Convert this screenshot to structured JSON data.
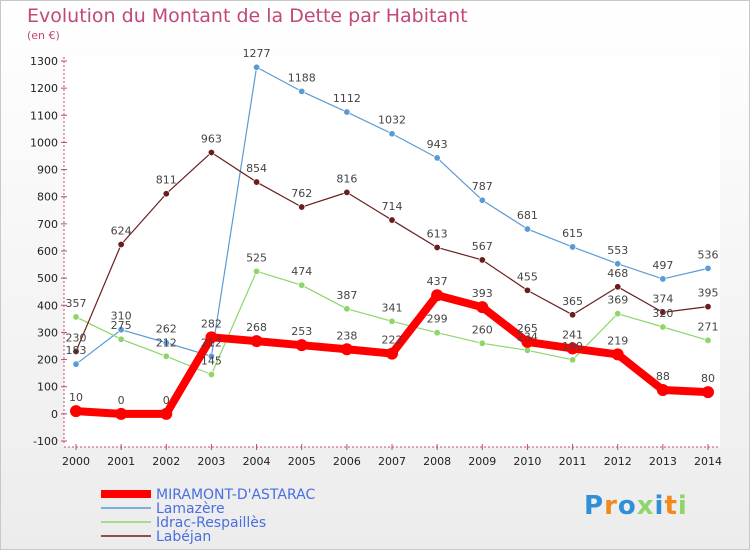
{
  "chart_data": {
    "type": "line",
    "title": "Evolution du Montant de la Dette par Habitant",
    "unit": "(en €)",
    "categories": [
      "2000",
      "2001",
      "2002",
      "2003",
      "2004",
      "2005",
      "2006",
      "2007",
      "2008",
      "2009",
      "2010",
      "2011",
      "2012",
      "2013",
      "2014"
    ],
    "ylim": [
      -100,
      1300
    ],
    "yticks": [
      -100,
      0,
      100,
      200,
      300,
      400,
      500,
      600,
      700,
      800,
      900,
      1000,
      1100,
      1200,
      1300
    ],
    "grid": false,
    "legend_position": "bottom-left",
    "series": [
      {
        "name": "MIRAMONT-D'ASTARAC",
        "color": "#ff0000",
        "values": [
          10,
          0,
          0,
          282,
          268,
          253,
          238,
          222,
          437,
          393,
          265,
          241,
          219,
          88,
          80
        ]
      },
      {
        "name": "Lamazère",
        "color": "#5b9bd5",
        "values": [
          183,
          310,
          262,
          212,
          1277,
          1188,
          1112,
          1032,
          943,
          787,
          681,
          615,
          553,
          497,
          536
        ]
      },
      {
        "name": "Idrac-Respaillès",
        "color": "#8ed66a",
        "values": [
          357,
          275,
          212,
          145,
          525,
          474,
          387,
          341,
          299,
          260,
          234,
          199,
          369,
          320,
          271
        ]
      },
      {
        "name": "Labéjan",
        "color": "#6b1d1d",
        "values": [
          230,
          624,
          811,
          963,
          854,
          762,
          816,
          714,
          613,
          567,
          455,
          365,
          468,
          374,
          395
        ]
      }
    ]
  },
  "logo": {
    "text": "Proxiti",
    "colors": [
      "#2f8fd8",
      "#f08a1c",
      "#2f8fd8",
      "#8ed66a",
      "#2f8fd8",
      "#f08a1c",
      "#8ed66a"
    ]
  }
}
